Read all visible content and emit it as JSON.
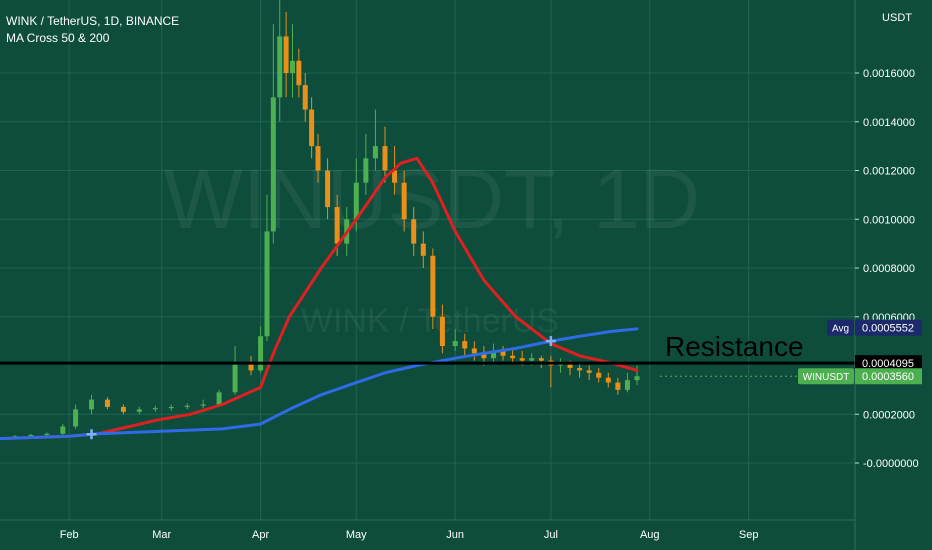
{
  "header": {
    "symbol_line": "WINK / TetherUS, 1D, BINANCE",
    "indicator": "MA Cross 50 & 200"
  },
  "unit_label": "USDT",
  "watermark": {
    "main": "WINUSDT, 1D",
    "sub": "WINK / TetherUS"
  },
  "colors": {
    "background": "#0e4d3c",
    "grid": "#1f6451",
    "candle_up": "#4caf50",
    "candle_down": "#e8901a",
    "ma_fast": "#e02020",
    "ma_slow": "#2f6be6",
    "cross_marker": "#7fb3ff",
    "avg_badge": "#1c2a6b",
    "last_badge": "#4caf50",
    "resistance_line": "#000000"
  },
  "annotations": {
    "resistance": "Resistance"
  },
  "chart_data": {
    "type": "line",
    "title": "WINK / TetherUS, 1D, BINANCE",
    "xlabel": "",
    "ylabel": "",
    "x_ticks": [
      "Feb",
      "Mar",
      "Apr",
      "May",
      "Jun",
      "Jul",
      "Aug",
      "Sep"
    ],
    "y_ticks": [
      "0.0016000",
      "0.0014000",
      "0.0012000",
      "0.0010000",
      "0.0008000",
      "0.0006000",
      "0.0002000",
      "-0.0000000"
    ],
    "ylim": [
      -0.0001,
      0.0018
    ],
    "grid": true,
    "price_labels": {
      "avg": {
        "label": "Avg",
        "value": "0.0005552"
      },
      "resistance": {
        "value": "0.0004095"
      },
      "last": {
        "label": "WINUSDT",
        "value": "0.0003560"
      }
    },
    "resistance_level": 0.0004095,
    "series": [
      {
        "label_hint": "MA 50",
        "x": [
          "2020-01-10",
          "2020-02-01",
          "2020-02-10",
          "2020-02-20",
          "2020-03-01",
          "2020-03-10",
          "2020-03-20",
          "2020-04-01",
          "2020-04-05",
          "2020-04-10",
          "2020-04-20",
          "2020-05-01",
          "2020-05-10",
          "2020-05-15",
          "2020-05-20",
          "2020-05-25",
          "2020-06-01",
          "2020-06-10",
          "2020-06-20",
          "2020-07-01",
          "2020-07-10",
          "2020-07-20",
          "2020-07-28"
        ],
        "values": [
          0.0001,
          0.00011,
          0.00012,
          0.00015,
          0.00018,
          0.0002,
          0.00024,
          0.00031,
          0.00045,
          0.0006,
          0.0008,
          0.001,
          0.00117,
          0.00123,
          0.00125,
          0.00115,
          0.00095,
          0.00075,
          0.0006,
          0.00049,
          0.00044,
          0.00041,
          0.00038
        ]
      },
      {
        "label_hint": "MA 200",
        "x": [
          "2020-01-10",
          "2020-02-01",
          "2020-02-10",
          "2020-03-01",
          "2020-03-20",
          "2020-04-01",
          "2020-04-10",
          "2020-04-20",
          "2020-05-01",
          "2020-05-10",
          "2020-05-20",
          "2020-06-01",
          "2020-06-10",
          "2020-06-20",
          "2020-07-01",
          "2020-07-10",
          "2020-07-20",
          "2020-07-28"
        ],
        "values": [
          0.0001,
          0.00011,
          0.00012,
          0.00013,
          0.00014,
          0.00016,
          0.00022,
          0.00028,
          0.00033,
          0.00037,
          0.0004,
          0.00043,
          0.00045,
          0.00047,
          0.0005,
          0.00052,
          0.00054,
          0.00055
        ]
      }
    ],
    "candles": {
      "x": [
        "2020-01-10",
        "2020-01-15",
        "2020-01-20",
        "2020-01-25",
        "2020-01-30",
        "2020-02-03",
        "2020-02-08",
        "2020-02-13",
        "2020-02-18",
        "2020-02-23",
        "2020-02-28",
        "2020-03-04",
        "2020-03-09",
        "2020-03-14",
        "2020-03-19",
        "2020-03-24",
        "2020-03-29",
        "2020-04-01",
        "2020-04-03",
        "2020-04-05",
        "2020-04-07",
        "2020-04-09",
        "2020-04-11",
        "2020-04-13",
        "2020-04-15",
        "2020-04-17",
        "2020-04-19",
        "2020-04-22",
        "2020-04-25",
        "2020-04-28",
        "2020-05-01",
        "2020-05-04",
        "2020-05-07",
        "2020-05-10",
        "2020-05-13",
        "2020-05-16",
        "2020-05-19",
        "2020-05-22",
        "2020-05-25",
        "2020-05-28",
        "2020-06-01",
        "2020-06-04",
        "2020-06-07",
        "2020-06-10",
        "2020-06-13",
        "2020-06-16",
        "2020-06-19",
        "2020-06-22",
        "2020-06-25",
        "2020-06-28",
        "2020-07-01",
        "2020-07-04",
        "2020-07-07",
        "2020-07-10",
        "2020-07-13",
        "2020-07-16",
        "2020-07-19",
        "2020-07-22",
        "2020-07-25",
        "2020-07-28"
      ],
      "open": [
        0.0001,
        0.000105,
        0.00011,
        0.000115,
        0.00012,
        0.00015,
        0.00022,
        0.00026,
        0.00023,
        0.00021,
        0.00022,
        0.000225,
        0.00023,
        0.000235,
        0.00024,
        0.00029,
        0.00041,
        0.00038,
        0.00052,
        0.00095,
        0.0015,
        0.00175,
        0.0016,
        0.00165,
        0.00155,
        0.00145,
        0.0013,
        0.0012,
        0.00105,
        0.0009,
        0.001,
        0.00115,
        0.00125,
        0.0013,
        0.0012,
        0.00115,
        0.001,
        0.0009,
        0.00085,
        0.0006,
        0.00048,
        0.0005,
        0.00047,
        0.00045,
        0.00043,
        0.00046,
        0.00044,
        0.00043,
        0.00042,
        0.00043,
        0.00042,
        0.0004,
        0.00041,
        0.00039,
        0.00038,
        0.00037,
        0.00035,
        0.00033,
        0.0003,
        0.00034
      ],
      "close": [
        0.000105,
        0.00011,
        0.000115,
        0.00012,
        0.00015,
        0.00022,
        0.00026,
        0.00023,
        0.00021,
        0.00022,
        0.000225,
        0.00023,
        0.000235,
        0.00024,
        0.00029,
        0.00041,
        0.00038,
        0.00052,
        0.00095,
        0.0015,
        0.00175,
        0.0016,
        0.00165,
        0.00155,
        0.00145,
        0.0013,
        0.0012,
        0.00105,
        0.0009,
        0.001,
        0.00115,
        0.00125,
        0.0013,
        0.0012,
        0.00115,
        0.001,
        0.0009,
        0.00085,
        0.0006,
        0.00048,
        0.0005,
        0.00047,
        0.00045,
        0.00043,
        0.00046,
        0.00044,
        0.00043,
        0.00042,
        0.00043,
        0.00042,
        0.0004,
        0.00041,
        0.00039,
        0.00038,
        0.00037,
        0.00035,
        0.00033,
        0.0003,
        0.00034,
        0.000356
      ],
      "high": [
        0.00011,
        0.000115,
        0.00012,
        0.000125,
        0.00016,
        0.00024,
        0.00028,
        0.00027,
        0.00024,
        0.00023,
        0.000235,
        0.00024,
        0.000245,
        0.00026,
        0.0003,
        0.00048,
        0.00044,
        0.00056,
        0.0011,
        0.0018,
        0.0019,
        0.00185,
        0.0018,
        0.0017,
        0.0016,
        0.0015,
        0.00135,
        0.00125,
        0.0011,
        0.00105,
        0.00125,
        0.00135,
        0.00145,
        0.00138,
        0.0013,
        0.0012,
        0.00105,
        0.00095,
        0.00088,
        0.00065,
        0.00055,
        0.00053,
        0.0005,
        0.00048,
        0.00049,
        0.00048,
        0.00047,
        0.00046,
        0.00045,
        0.00044,
        0.00044,
        0.00043,
        0.00042,
        0.00041,
        0.0004,
        0.00039,
        0.00037,
        0.00035,
        0.00037,
        0.0004
      ],
      "low": [
        9.5e-05,
        0.0001,
        0.000105,
        0.00011,
        0.000115,
        0.00014,
        0.0002,
        0.00022,
        0.0002,
        0.0002,
        0.00021,
        0.000215,
        0.00022,
        0.000225,
        0.00023,
        0.00028,
        0.00036,
        0.00037,
        0.0005,
        0.0009,
        0.0014,
        0.0015,
        0.0015,
        0.0015,
        0.0014,
        0.00125,
        0.00115,
        0.001,
        0.00085,
        0.00085,
        0.00095,
        0.0011,
        0.0012,
        0.00115,
        0.0011,
        0.00095,
        0.00085,
        0.0008,
        0.00055,
        0.00045,
        0.00046,
        0.00044,
        0.00042,
        0.0004,
        0.00041,
        0.00042,
        0.00041,
        0.0004,
        0.0004,
        0.00039,
        0.00031,
        0.00037,
        0.00036,
        0.00035,
        0.00034,
        0.00033,
        0.00031,
        0.00028,
        0.00029,
        0.00032
      ]
    }
  }
}
